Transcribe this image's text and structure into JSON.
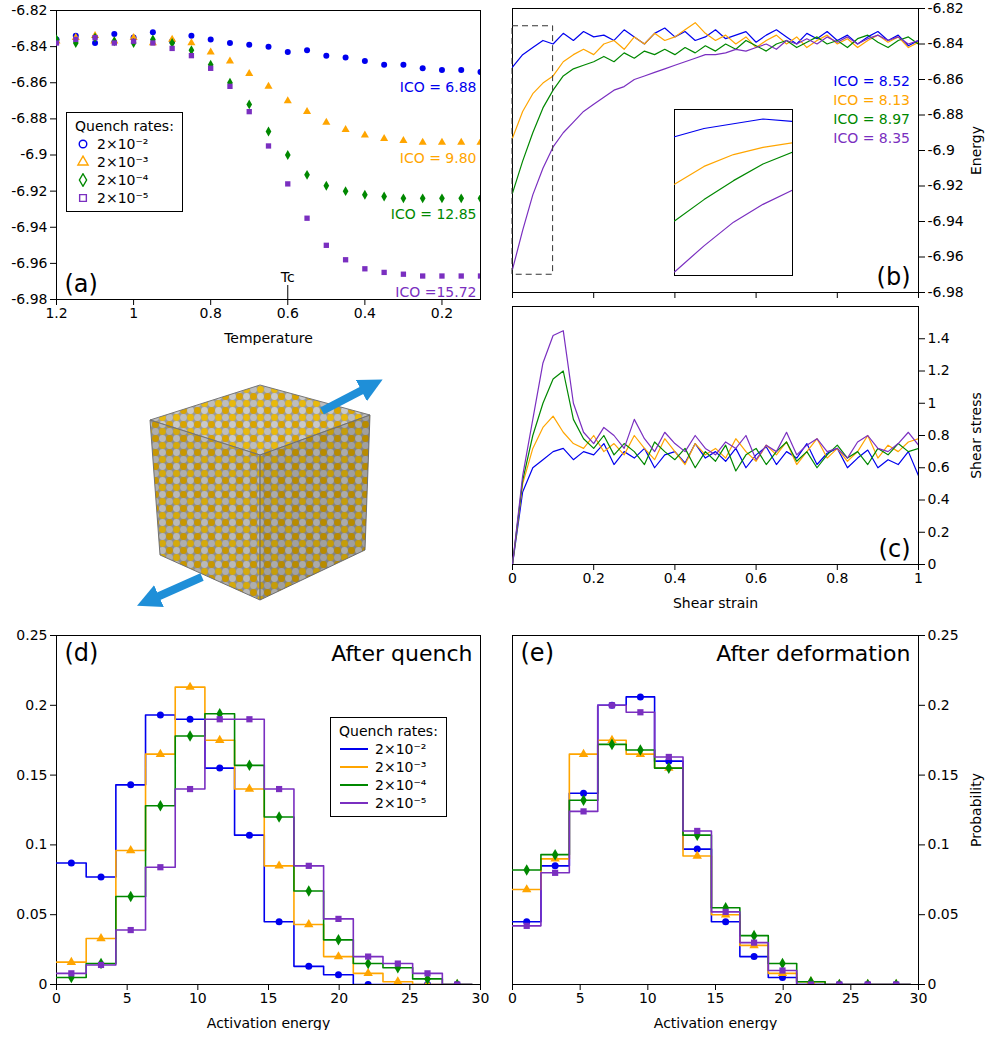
{
  "chart_data": [
    {
      "type": "scatter",
      "panel": "(a)",
      "x_label": "Temperature",
      "xlim": [
        1.2,
        0.1
      ],
      "xticks": [
        1.2,
        1,
        0.8,
        0.6,
        0.4,
        0.2
      ],
      "ylim": [
        -6.98,
        -6.82
      ],
      "yticks": [
        -6.98,
        -6.96,
        -6.94,
        -6.92,
        -6.9,
        -6.88,
        -6.86,
        -6.84,
        -6.82
      ],
      "legend": "left",
      "legend_title": "Quench rates:",
      "annotations": [
        {
          "text": "Tc",
          "x": 0.6
        }
      ],
      "x": [
        1.2,
        1.15,
        1.1,
        1.05,
        1.0,
        0.95,
        0.9,
        0.85,
        0.8,
        0.75,
        0.7,
        0.65,
        0.6,
        0.55,
        0.5,
        0.45,
        0.4,
        0.35,
        0.3,
        0.25,
        0.2,
        0.15,
        0.1
      ],
      "series": [
        {
          "name": "2×10⁻²",
          "color": "#0000ee",
          "marker": "circle",
          "annotation": "ICO = 6.88",
          "values": [
            -6.836,
            -6.834,
            -6.838,
            -6.833,
            -6.835,
            -6.832,
            -6.837,
            -6.834,
            -6.836,
            -6.838,
            -6.839,
            -6.84,
            -6.843,
            -6.842,
            -6.845,
            -6.846,
            -6.848,
            -6.85,
            -6.85,
            -6.852,
            -6.853,
            -6.853,
            -6.854
          ]
        },
        {
          "name": "2×10⁻³",
          "color": "#ffa500",
          "marker": "triangle",
          "annotation": "ICO = 9.80",
          "values": [
            -6.837,
            -6.835,
            -6.834,
            -6.837,
            -6.835,
            -6.838,
            -6.836,
            -6.838,
            -6.843,
            -6.848,
            -6.855,
            -6.862,
            -6.87,
            -6.876,
            -6.882,
            -6.886,
            -6.889,
            -6.891,
            -6.892,
            -6.893,
            -6.893,
            -6.893,
            -6.893
          ]
        },
        {
          "name": "2×10⁻⁴",
          "color": "#008800",
          "marker": "diamond",
          "annotation": "ICO = 12.85",
          "values": [
            -6.836,
            -6.838,
            -6.835,
            -6.837,
            -6.838,
            -6.836,
            -6.838,
            -6.842,
            -6.85,
            -6.86,
            -6.872,
            -6.887,
            -6.9,
            -6.911,
            -6.917,
            -6.92,
            -6.922,
            -6.923,
            -6.924,
            -6.924,
            -6.924,
            -6.924,
            -6.924
          ]
        },
        {
          "name": "2×10⁻⁵",
          "color": "#7a2fc0",
          "marker": "square",
          "annotation": "ICO =15.72",
          "values": [
            -6.838,
            -6.836,
            -6.835,
            -6.838,
            -6.837,
            -6.838,
            -6.841,
            -6.845,
            -6.852,
            -6.862,
            -6.876,
            -6.895,
            -6.916,
            -6.935,
            -6.95,
            -6.958,
            -6.963,
            -6.965,
            -6.966,
            -6.967,
            -6.967,
            -6.967,
            -6.967
          ]
        }
      ]
    },
    {
      "type": "line",
      "panel": "(b)",
      "y_label": "Energy",
      "tick_labels": "y",
      "xlim": [
        0,
        1
      ],
      "xticks": [
        0,
        0.2,
        0.4,
        0.6,
        0.8,
        1
      ],
      "ylim": [
        -6.98,
        -6.82
      ],
      "yticks": [
        -6.98,
        -6.96,
        -6.94,
        -6.92,
        -6.9,
        -6.88,
        -6.86,
        -6.84,
        -6.82
      ],
      "legend": "right",
      "inset": {
        "xlim": [
          0,
          0.1
        ],
        "ylim": [
          -6.97,
          -6.83
        ],
        "tick_labels": false
      },
      "x": [
        0,
        0.025,
        0.05,
        0.075,
        0.1,
        0.125,
        0.15,
        0.175,
        0.2,
        0.225,
        0.25,
        0.275,
        0.3,
        0.325,
        0.35,
        0.375,
        0.4,
        0.425,
        0.45,
        0.475,
        0.5,
        0.525,
        0.55,
        0.575,
        0.6,
        0.625,
        0.65,
        0.675,
        0.7,
        0.725,
        0.75,
        0.775,
        0.8,
        0.825,
        0.85,
        0.875,
        0.9,
        0.925,
        0.95,
        0.975,
        1
      ],
      "series": [
        {
          "name": "ICO = 8.52",
          "color": "#0000ee",
          "values": [
            -6.853,
            -6.846,
            -6.842,
            -6.838,
            -6.84,
            -6.834,
            -6.838,
            -6.833,
            -6.836,
            -6.835,
            -6.838,
            -6.832,
            -6.836,
            -6.84,
            -6.834,
            -6.831,
            -6.836,
            -6.833,
            -6.838,
            -6.836,
            -6.832,
            -6.837,
            -6.835,
            -6.833,
            -6.839,
            -6.835,
            -6.832,
            -6.836,
            -6.84,
            -6.834,
            -6.837,
            -6.833,
            -6.838,
            -6.835,
            -6.84,
            -6.836,
            -6.833,
            -6.838,
            -6.835,
            -6.841,
            -6.838
          ]
        },
        {
          "name": "ICO = 8.13",
          "color": "#ffa500",
          "values": [
            -6.893,
            -6.878,
            -6.868,
            -6.862,
            -6.858,
            -6.85,
            -6.846,
            -6.843,
            -6.846,
            -6.84,
            -6.838,
            -6.843,
            -6.836,
            -6.84,
            -6.834,
            -6.838,
            -6.836,
            -6.832,
            -6.828,
            -6.834,
            -6.838,
            -6.835,
            -6.84,
            -6.836,
            -6.842,
            -6.838,
            -6.835,
            -6.84,
            -6.836,
            -6.842,
            -6.838,
            -6.835,
            -6.84,
            -6.837,
            -6.842,
            -6.838,
            -6.835,
            -6.839,
            -6.836,
            -6.842,
            -6.839
          ]
        },
        {
          "name": "ICO = 8.97",
          "color": "#008800",
          "values": [
            -6.924,
            -6.906,
            -6.89,
            -6.876,
            -6.866,
            -6.858,
            -6.854,
            -6.852,
            -6.85,
            -6.847,
            -6.85,
            -6.845,
            -6.848,
            -6.844,
            -6.846,
            -6.843,
            -6.846,
            -6.842,
            -6.845,
            -6.841,
            -6.844,
            -6.84,
            -6.843,
            -6.838,
            -6.841,
            -6.844,
            -6.84,
            -6.838,
            -6.842,
            -6.839,
            -6.836,
            -6.84,
            -6.838,
            -6.842,
            -6.837,
            -6.835,
            -6.839,
            -6.842,
            -6.838,
            -6.836,
            -6.84
          ]
        },
        {
          "name": "ICO = 8.35",
          "color": "#7a2fc0",
          "values": [
            -6.967,
            -6.945,
            -6.925,
            -6.91,
            -6.898,
            -6.89,
            -6.884,
            -6.878,
            -6.874,
            -6.87,
            -6.866,
            -6.864,
            -6.86,
            -6.858,
            -6.856,
            -6.854,
            -6.852,
            -6.85,
            -6.848,
            -6.846,
            -6.846,
            -6.845,
            -6.843,
            -6.844,
            -6.842,
            -6.84,
            -6.843,
            -6.838,
            -6.84,
            -6.837,
            -6.84,
            -6.836,
            -6.839,
            -6.836,
            -6.84,
            -6.837,
            -6.835,
            -6.838,
            -6.836,
            -6.84,
            -6.838
          ]
        }
      ]
    },
    {
      "type": "line",
      "panel": "(c)",
      "x_label": "Shear strain",
      "y_label": "Shear stress",
      "xlim": [
        0,
        1
      ],
      "xticks": [
        0,
        0.2,
        0.4,
        0.6,
        0.8,
        1
      ],
      "ylim": [
        0,
        1.6
      ],
      "yticks": [
        0,
        0.2,
        0.4,
        0.6,
        0.8,
        1,
        1.2,
        1.4
      ],
      "x": [
        0,
        0.025,
        0.05,
        0.075,
        0.1,
        0.125,
        0.15,
        0.175,
        0.2,
        0.225,
        0.25,
        0.275,
        0.3,
        0.325,
        0.35,
        0.375,
        0.4,
        0.425,
        0.45,
        0.475,
        0.5,
        0.525,
        0.55,
        0.575,
        0.6,
        0.625,
        0.65,
        0.675,
        0.7,
        0.725,
        0.75,
        0.775,
        0.8,
        0.825,
        0.85,
        0.875,
        0.9,
        0.925,
        0.95,
        0.975,
        1
      ],
      "series": [
        {
          "color": "#0000ee",
          "values": [
            0,
            0.45,
            0.6,
            0.65,
            0.7,
            0.72,
            0.65,
            0.7,
            0.68,
            0.75,
            0.62,
            0.7,
            0.66,
            0.72,
            0.6,
            0.68,
            0.7,
            0.63,
            0.75,
            0.66,
            0.7,
            0.64,
            0.72,
            0.6,
            0.68,
            0.73,
            0.62,
            0.7,
            0.66,
            0.75,
            0.62,
            0.69,
            0.72,
            0.6,
            0.66,
            0.71,
            0.6,
            0.65,
            0.62,
            0.7,
            0.55
          ]
        },
        {
          "color": "#ffa500",
          "values": [
            0,
            0.5,
            0.72,
            0.85,
            0.92,
            0.82,
            0.75,
            0.72,
            0.8,
            0.7,
            0.75,
            0.68,
            0.8,
            0.72,
            0.65,
            0.78,
            0.7,
            0.62,
            0.75,
            0.68,
            0.72,
            0.66,
            0.78,
            0.7,
            0.64,
            0.74,
            0.68,
            0.76,
            0.62,
            0.7,
            0.78,
            0.66,
            0.72,
            0.64,
            0.7,
            0.8,
            0.66,
            0.74,
            0.7,
            0.76,
            0.78
          ]
        },
        {
          "color": "#008800",
          "values": [
            0,
            0.52,
            0.8,
            1.0,
            1.15,
            1.2,
            0.9,
            0.78,
            0.72,
            0.8,
            0.68,
            0.75,
            0.7,
            0.62,
            0.76,
            0.7,
            0.65,
            0.72,
            0.6,
            0.7,
            0.64,
            0.74,
            0.58,
            0.68,
            0.72,
            0.62,
            0.7,
            0.76,
            0.64,
            0.7,
            0.6,
            0.68,
            0.74,
            0.66,
            0.7,
            0.62,
            0.72,
            0.68,
            0.75,
            0.7,
            0.72
          ]
        },
        {
          "color": "#7a2fc0",
          "values": [
            0,
            0.55,
            0.9,
            1.25,
            1.42,
            1.45,
            1.0,
            0.82,
            0.75,
            0.85,
            0.8,
            0.72,
            0.9,
            0.78,
            0.7,
            0.82,
            0.75,
            0.7,
            0.8,
            0.72,
            0.68,
            0.76,
            0.72,
            0.8,
            0.65,
            0.74,
            0.7,
            0.82,
            0.68,
            0.74,
            0.78,
            0.7,
            0.72,
            0.66,
            0.76,
            0.8,
            0.72,
            0.7,
            0.75,
            0.82,
            0.74
          ]
        }
      ]
    },
    {
      "type": "histogram",
      "panel": "(d)",
      "title": "After quench",
      "x_label": "Activation energy",
      "xlim": [
        0,
        30
      ],
      "xticks": [
        0,
        5,
        10,
        15,
        20,
        25,
        30
      ],
      "ylim": [
        0,
        0.25
      ],
      "yticks": [
        0,
        0.05,
        0.1,
        0.15,
        0.2,
        0.25
      ],
      "legend": "right",
      "legend_title": "Quench rates:",
      "bins": [
        0,
        2.1,
        4.2,
        6.3,
        8.4,
        10.5,
        12.6,
        14.7,
        16.8,
        18.9,
        21,
        23.1,
        25.2,
        27.3,
        29.4
      ],
      "series": [
        {
          "name": "2×10⁻²",
          "color": "#0000ee",
          "marker": "circle",
          "values": [
            0.087,
            0.077,
            0.143,
            0.193,
            0.19,
            0.155,
            0.107,
            0.045,
            0.013,
            0.007,
            0,
            0,
            0,
            0
          ]
        },
        {
          "name": "2×10⁻³",
          "color": "#ffa500",
          "marker": "triangle",
          "values": [
            0.016,
            0.033,
            0.096,
            0.165,
            0.213,
            0.175,
            0.14,
            0.085,
            0.043,
            0.02,
            0.008,
            0.002,
            0,
            0
          ]
        },
        {
          "name": "2×10⁻⁴",
          "color": "#008800",
          "marker": "diamond",
          "values": [
            0.005,
            0.015,
            0.063,
            0.128,
            0.178,
            0.194,
            0.157,
            0.12,
            0.067,
            0.032,
            0.015,
            0.012,
            0.004,
            0
          ]
        },
        {
          "name": "2×10⁻⁵",
          "color": "#7a2fc0",
          "marker": "square",
          "values": [
            0.008,
            0.014,
            0.039,
            0.084,
            0.14,
            0.19,
            0.19,
            0.14,
            0.085,
            0.047,
            0.02,
            0.015,
            0.008,
            0
          ]
        }
      ]
    },
    {
      "type": "histogram",
      "panel": "(e)",
      "title": "After deformation",
      "x_label": "Activation energy",
      "y_label": "Probability",
      "xlim": [
        0,
        30
      ],
      "xticks": [
        0,
        5,
        10,
        15,
        20,
        25,
        30
      ],
      "ylim": [
        0,
        0.25
      ],
      "yticks": [
        0,
        0.05,
        0.1,
        0.15,
        0.2,
        0.25
      ],
      "bins": [
        0,
        2.1,
        4.2,
        6.3,
        8.4,
        10.5,
        12.6,
        14.7,
        16.8,
        18.9,
        21,
        23.1,
        25.2,
        27.3,
        29.4
      ],
      "series": [
        {
          "color": "#0000ee",
          "marker": "circle",
          "values": [
            0.045,
            0.085,
            0.137,
            0.2,
            0.206,
            0.16,
            0.097,
            0.045,
            0.02,
            0.005,
            0,
            0,
            0,
            0
          ]
        },
        {
          "color": "#ffa500",
          "marker": "triangle",
          "values": [
            0.068,
            0.09,
            0.165,
            0.175,
            0.165,
            0.155,
            0.092,
            0.05,
            0.028,
            0.008,
            0.002,
            0,
            0,
            0
          ]
        },
        {
          "color": "#008800",
          "marker": "diamond",
          "values": [
            0.082,
            0.093,
            0.132,
            0.172,
            0.168,
            0.155,
            0.107,
            0.055,
            0.035,
            0.015,
            0.002,
            0,
            0,
            0
          ]
        },
        {
          "color": "#7a2fc0",
          "marker": "square",
          "values": [
            0.042,
            0.08,
            0.124,
            0.2,
            0.195,
            0.163,
            0.11,
            0.052,
            0.03,
            0.01,
            0,
            0,
            0,
            0
          ]
        }
      ]
    }
  ]
}
